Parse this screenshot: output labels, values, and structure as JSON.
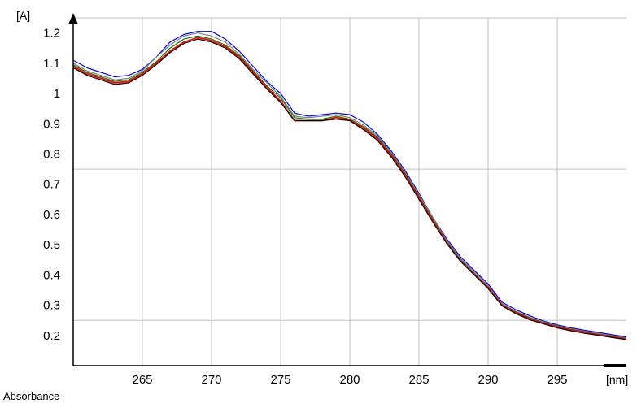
{
  "chart_data": {
    "type": "line",
    "title": "",
    "ylabel": "[A]",
    "xlabel": "[nm]",
    "caption": "Absorbance",
    "xlim": [
      260,
      300
    ],
    "ylim": [
      0.1,
      1.25
    ],
    "x_ticks": [
      265,
      270,
      275,
      280,
      285,
      290,
      295
    ],
    "y_ticks": [
      0.2,
      0.3,
      0.4,
      0.5,
      0.6,
      0.7,
      0.8,
      0.9,
      1,
      1.1,
      1.2
    ],
    "y_tick_labels": [
      "0.2",
      "0.3",
      "0.4",
      "0.5",
      "0.6",
      "0.7",
      "0.8",
      "0.9",
      "1",
      "1.1",
      "1.2"
    ],
    "grid": true,
    "x": [
      260,
      261,
      262,
      263,
      264,
      265,
      266,
      267,
      268,
      269,
      270,
      271,
      272,
      273,
      274,
      275,
      276,
      277,
      278,
      279,
      280,
      281,
      282,
      283,
      284,
      285,
      286,
      287,
      288,
      289,
      290,
      291,
      292,
      293,
      294,
      295,
      296,
      297,
      298,
      299,
      300
    ],
    "series": [
      {
        "color": "#0000ff",
        "values": [
          1.11,
          1.085,
          1.07,
          1.055,
          1.06,
          1.08,
          1.12,
          1.17,
          1.195,
          1.205,
          1.205,
          1.18,
          1.14,
          1.09,
          1.04,
          1.0,
          0.935,
          0.925,
          0.93,
          0.935,
          0.93,
          0.905,
          0.865,
          0.81,
          0.745,
          0.67,
          0.59,
          0.52,
          0.46,
          0.415,
          0.37,
          0.31,
          0.285,
          0.265,
          0.248,
          0.235,
          0.225,
          0.217,
          0.21,
          0.202,
          0.195
        ]
      },
      {
        "color": "#808080",
        "values": [
          1.1,
          1.075,
          1.06,
          1.045,
          1.05,
          1.075,
          1.12,
          1.16,
          1.19,
          1.2,
          1.19,
          1.17,
          1.13,
          1.08,
          1.035,
          0.99,
          0.925,
          0.92,
          0.925,
          0.93,
          0.92,
          0.895,
          0.86,
          0.805,
          0.74,
          0.665,
          0.59,
          0.515,
          0.455,
          0.41,
          0.365,
          0.305,
          0.28,
          0.26,
          0.245,
          0.232,
          0.222,
          0.213,
          0.206,
          0.199,
          0.192
        ]
      },
      {
        "color": "#008000",
        "values": [
          1.095,
          1.07,
          1.055,
          1.04,
          1.045,
          1.07,
          1.105,
          1.15,
          1.18,
          1.19,
          1.18,
          1.16,
          1.125,
          1.075,
          1.025,
          0.985,
          0.92,
          0.915,
          0.915,
          0.925,
          0.915,
          0.89,
          0.855,
          0.8,
          0.735,
          0.66,
          0.585,
          0.51,
          0.45,
          0.405,
          0.36,
          0.302,
          0.278,
          0.258,
          0.242,
          0.23,
          0.22,
          0.212,
          0.204,
          0.197,
          0.19
        ]
      },
      {
        "color": "#ff0000",
        "values": [
          1.09,
          1.065,
          1.05,
          1.035,
          1.04,
          1.065,
          1.1,
          1.14,
          1.17,
          1.185,
          1.175,
          1.155,
          1.12,
          1.07,
          1.02,
          0.975,
          0.91,
          0.91,
          0.91,
          0.92,
          0.912,
          0.885,
          0.85,
          0.795,
          0.73,
          0.655,
          0.58,
          0.507,
          0.447,
          0.402,
          0.358,
          0.3,
          0.275,
          0.255,
          0.24,
          0.228,
          0.218,
          0.21,
          0.202,
          0.195,
          0.188
        ]
      },
      {
        "color": "#000000",
        "values": [
          1.085,
          1.06,
          1.045,
          1.03,
          1.035,
          1.06,
          1.095,
          1.135,
          1.165,
          1.18,
          1.17,
          1.15,
          1.115,
          1.065,
          1.015,
          0.97,
          0.91,
          0.91,
          0.91,
          0.915,
          0.91,
          0.88,
          0.845,
          0.79,
          0.725,
          0.65,
          0.575,
          0.505,
          0.445,
          0.4,
          0.355,
          0.298,
          0.272,
          0.252,
          0.238,
          0.225,
          0.215,
          0.207,
          0.2,
          0.193,
          0.186
        ]
      }
    ]
  }
}
